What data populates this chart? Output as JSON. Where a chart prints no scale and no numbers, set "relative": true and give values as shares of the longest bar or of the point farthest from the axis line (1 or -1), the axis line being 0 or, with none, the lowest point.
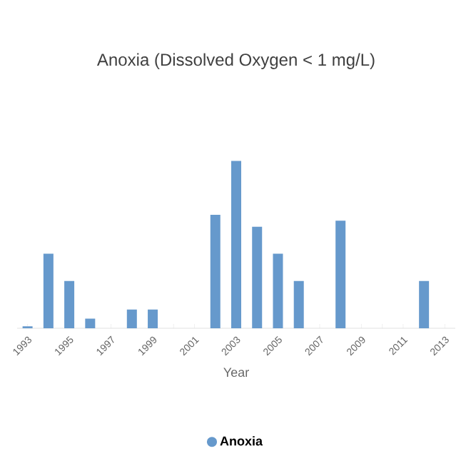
{
  "chart_data": {
    "type": "bar",
    "title": "Anoxia (Dissolved Oxygen < 1 mg/L)",
    "xlabel": "Year",
    "relative": true,
    "legend": "bottom",
    "categories": [
      "1993",
      null,
      "1995",
      null,
      "1997",
      null,
      "1999",
      null,
      "2001",
      null,
      "2003",
      null,
      "2005",
      null,
      "2007",
      null,
      "2009",
      null,
      "2011",
      null,
      "2013"
    ],
    "series": [
      {
        "name": "Anoxia",
        "color": "#6699cc",
        "values": [
          0.012,
          0.446,
          0.283,
          0.058,
          0,
          0.112,
          0.112,
          0,
          0,
          0.678,
          1,
          0.607,
          0.446,
          0.283,
          0,
          0.643,
          0,
          0,
          0,
          0.283,
          0
        ]
      }
    ]
  }
}
